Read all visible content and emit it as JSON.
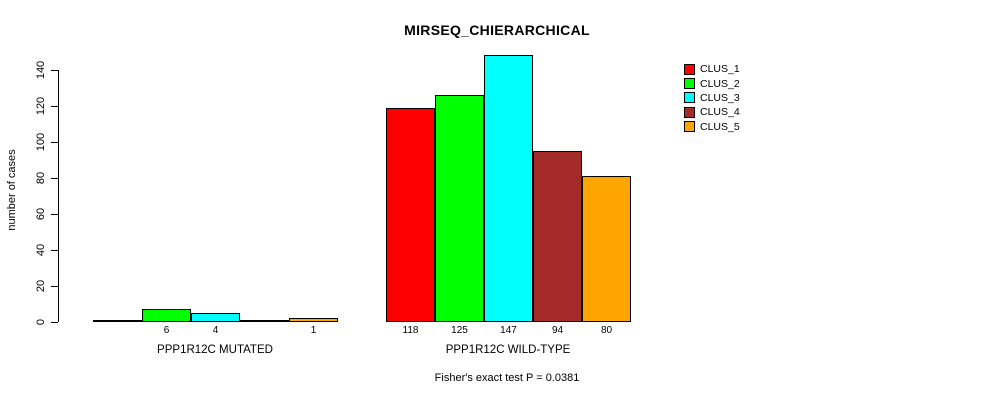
{
  "title": "MIRSEQ_CHIERARCHICAL",
  "footer": "Fisher's exact test P = 0.0381",
  "chart_data": {
    "type": "bar",
    "title": "MIRSEQ_CHIERARCHICAL",
    "xlabel": "",
    "ylabel": "number of cases",
    "ylim": [
      0,
      140
    ],
    "yticks": [
      0,
      20,
      40,
      60,
      80,
      100,
      120,
      140
    ],
    "grid": false,
    "legend_position": "top-right",
    "bar_border_color": "#000000",
    "series": [
      {
        "name": "CLUS_1",
        "color": "#FF0000",
        "values": [
          0,
          118
        ]
      },
      {
        "name": "CLUS_2",
        "color": "#00FF00",
        "values": [
          6,
          125
        ]
      },
      {
        "name": "CLUS_3",
        "color": "#00FFFF",
        "values": [
          4,
          147
        ]
      },
      {
        "name": "CLUS_4",
        "color": "#A52A2A",
        "values": [
          0,
          94
        ]
      },
      {
        "name": "CLUS_5",
        "color": "#FFA500",
        "values": [
          1,
          80
        ]
      }
    ],
    "groups": [
      {
        "label": "PPP1R12C MUTATED",
        "values": [
          0,
          6,
          4,
          0,
          1
        ]
      },
      {
        "label": "PPP1R12C WILD-TYPE",
        "values": [
          118,
          125,
          147,
          94,
          80
        ]
      }
    ],
    "annotation": "Fisher's exact test P = 0.0381"
  }
}
